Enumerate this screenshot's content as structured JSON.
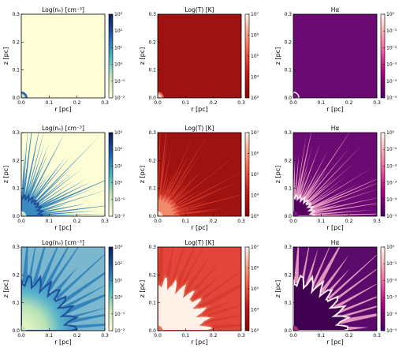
{
  "chart_data": {
    "type": "heatmap",
    "layout": "3 rows x 3 columns of simulation snapshots",
    "panels": [
      {
        "row": 0,
        "col": 0,
        "title": "Log(nₑ) [cm⁻³]",
        "colormap": "YlGnBu",
        "cbar_ticks": [
          "10³",
          "10²",
          "10¹",
          "10⁰",
          "10⁻¹",
          "10⁻²"
        ],
        "front_radius_pc": 0.02,
        "ray_count": 0
      },
      {
        "row": 0,
        "col": 1,
        "title": "Log(T) [K]",
        "colormap": "Reds_r",
        "cbar_ticks": [
          "10⁷",
          "10⁶",
          "10⁵",
          "10⁴",
          "10³"
        ],
        "front_radius_pc": 0.02,
        "ray_count": 0
      },
      {
        "row": 0,
        "col": 2,
        "title": "Hα",
        "colormap": "RdPu_r",
        "cbar_ticks": [
          "10⁰",
          "10⁻¹",
          "10⁻²",
          "10⁻³",
          "10⁻⁴",
          "10⁻⁵"
        ],
        "front_radius_pc": 0.02,
        "ray_count": 0
      },
      {
        "row": 1,
        "col": 0,
        "title": "Log(nₑ) [cm⁻³]",
        "colormap": "YlGnBu",
        "cbar_ticks": [
          "10³",
          "10²",
          "10¹",
          "10⁰",
          "10⁻¹",
          "10⁻²"
        ],
        "front_radius_pc": 0.07,
        "ray_count": 28
      },
      {
        "row": 1,
        "col": 1,
        "title": "Log(T) [K]",
        "colormap": "Reds_r",
        "cbar_ticks": [
          "10⁷",
          "10⁶",
          "10⁵",
          "10⁴",
          "10³"
        ],
        "front_radius_pc": 0.07,
        "ray_count": 28
      },
      {
        "row": 1,
        "col": 2,
        "title": "Hα",
        "colormap": "RdPu_r",
        "cbar_ticks": [
          "10⁰",
          "10⁻¹",
          "10⁻²",
          "10⁻³",
          "10⁻⁴",
          "10⁻⁵"
        ],
        "front_radius_pc": 0.07,
        "ray_count": 28
      },
      {
        "row": 2,
        "col": 0,
        "title": "Log(nₑ) [cm⁻³]",
        "colormap": "YlGnBu",
        "cbar_ticks": [
          "10³",
          "10²",
          "10¹",
          "10⁰",
          "10⁻¹",
          "10⁻²"
        ],
        "front_radius_pc": 0.18,
        "ray_count": 14
      },
      {
        "row": 2,
        "col": 1,
        "title": "Log(T) [K]",
        "colormap": "Reds_r",
        "cbar_ticks": [
          "10⁷",
          "10⁶",
          "10⁵",
          "10⁴",
          "10³"
        ],
        "front_radius_pc": 0.18,
        "ray_count": 14
      },
      {
        "row": 2,
        "col": 2,
        "title": "Hα",
        "colormap": "RdPu_r",
        "cbar_ticks": [
          "10⁰",
          "10⁻¹",
          "10⁻²",
          "10⁻³",
          "10⁻⁴",
          "10⁻⁵"
        ],
        "front_radius_pc": 0.18,
        "ray_count": 14
      }
    ],
    "xlabel": "r [pc]",
    "ylabel": "z [pc]",
    "xlim": [
      0,
      0.3
    ],
    "ylim": [
      0,
      0.3
    ],
    "x_ticks": [
      "0.0",
      "0.1",
      "0.2",
      "0.3"
    ],
    "y_ticks": [
      "0.0",
      "0.1",
      "0.2",
      "0.3"
    ]
  }
}
